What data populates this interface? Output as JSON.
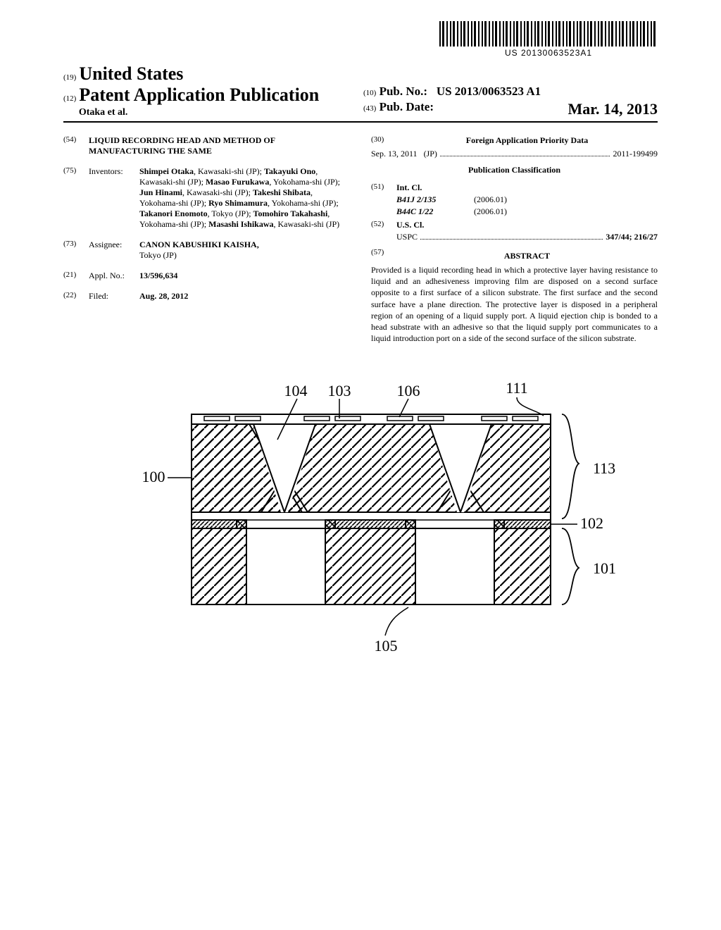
{
  "barcode": {
    "text": "US 20130063523A1"
  },
  "header": {
    "code19": "(19)",
    "country": "United States",
    "code12": "(12)",
    "pubType": "Patent Application Publication",
    "authorsEtAl": "Otaka et al.",
    "code10": "(10)",
    "pubNoLabel": "Pub. No.:",
    "pubNo": "US 2013/0063523 A1",
    "code43": "(43)",
    "pubDateLabel": "Pub. Date:",
    "pubDate": "Mar. 14, 2013"
  },
  "fields": {
    "title": {
      "code": "(54)",
      "text": "LIQUID RECORDING HEAD AND METHOD OF MANUFACTURING THE SAME"
    },
    "inventors": {
      "code": "(75)",
      "label": "Inventors:",
      "list": "Shimpei Otaka, Kawasaki-shi (JP); Takayuki Ono, Kawasaki-shi (JP); Masao Furukawa, Yokohama-shi (JP); Jun Hinami, Kawasaki-shi (JP); Takeshi Shibata, Yokohama-shi (JP); Ryo Shimamura, Yokohama-shi (JP); Takanori Enomoto, Tokyo (JP); Tomohiro Takahashi, Yokohama-shi (JP); Masashi Ishikawa, Kawasaki-shi (JP)"
    },
    "assignee": {
      "code": "(73)",
      "label": "Assignee:",
      "name": "CANON KABUSHIKI KAISHA,",
      "loc": "Tokyo (JP)"
    },
    "applNo": {
      "code": "(21)",
      "label": "Appl. No.:",
      "value": "13/596,634"
    },
    "filed": {
      "code": "(22)",
      "label": "Filed:",
      "value": "Aug. 28, 2012"
    },
    "foreignPriority": {
      "code": "(30)",
      "heading": "Foreign Application Priority Data",
      "date": "Sep. 13, 2011",
      "country": "(JP)",
      "number": "2011-199499"
    },
    "pubClassification": {
      "heading": "Publication Classification"
    },
    "intCl": {
      "code": "(51)",
      "label": "Int. Cl.",
      "rows": [
        {
          "symbol": "B41J 2/135",
          "year": "(2006.01)"
        },
        {
          "symbol": "B44C 1/22",
          "year": "(2006.01)"
        }
      ]
    },
    "usCl": {
      "code": "(52)",
      "label": "U.S. Cl.",
      "uspcLabel": "USPC",
      "uspcValue": "347/44; 216/27"
    },
    "abstract": {
      "code": "(57)",
      "heading": "ABSTRACT",
      "text": "Provided is a liquid recording head in which a protective layer having resistance to liquid and an adhesiveness improving film are disposed on a second surface opposite to a first surface of a silicon substrate. The first surface and the second surface have a plane direction. The protective layer is disposed in a peripheral region of an opening of a liquid supply port. A liquid ejection chip is bonded to a head substrate with an adhesive so that the liquid supply port communicates to a liquid introduction port on a side of the second surface of the silicon substrate."
    }
  },
  "figure": {
    "refs": {
      "r100": "100",
      "r101": "101",
      "r102": "102",
      "r103": "103",
      "r104": "104",
      "r105": "105",
      "r106": "106",
      "r111": "111",
      "r113": "113"
    },
    "font": "22px serif",
    "stroke": "#000000",
    "strokeWidth": 2
  }
}
